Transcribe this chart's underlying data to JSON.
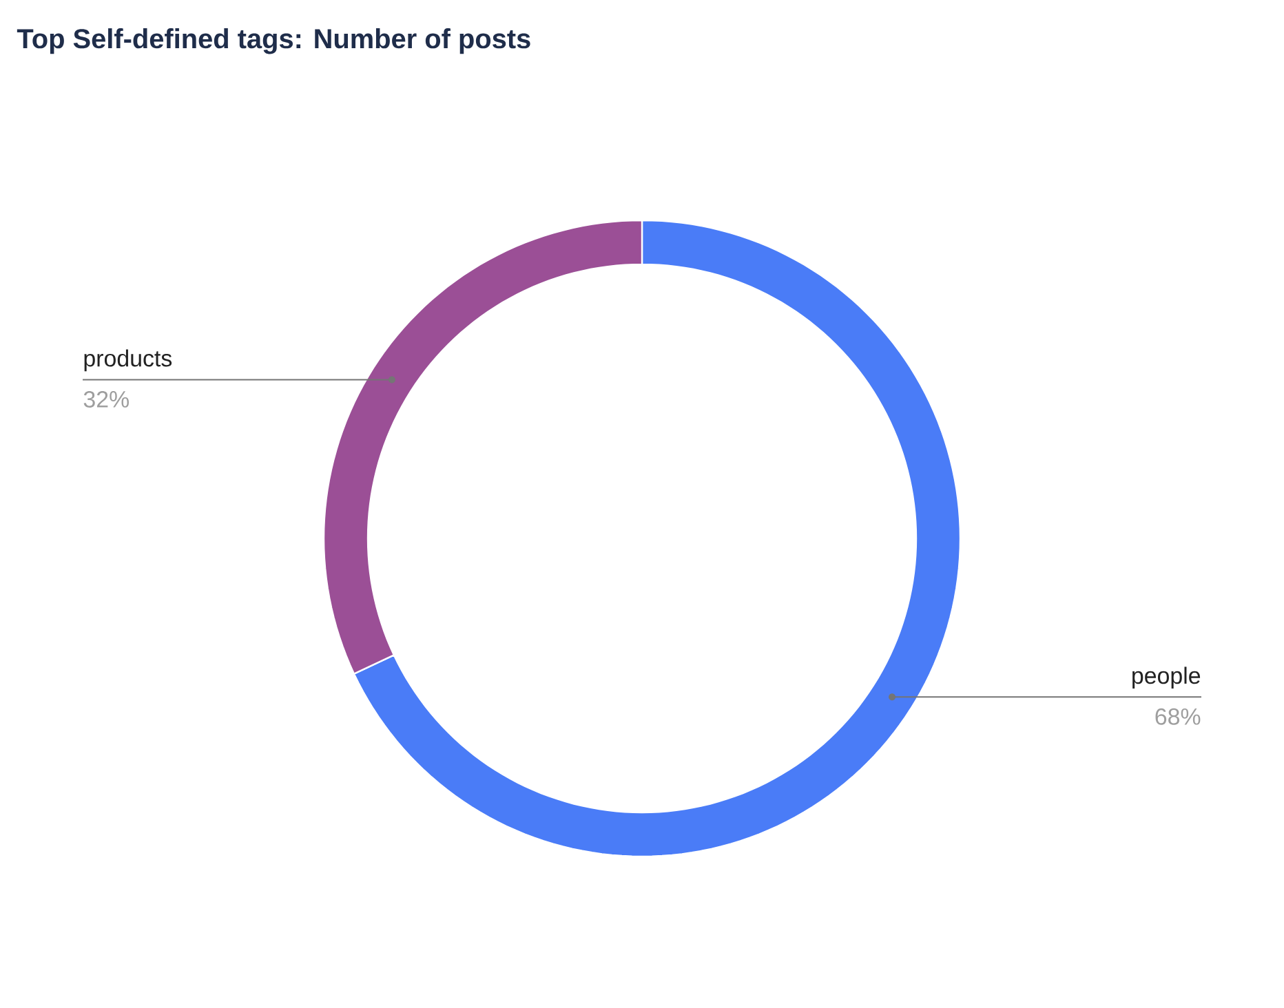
{
  "chart_data": {
    "type": "donut",
    "title": "Top Self-defined tags: Number of posts",
    "categories": [
      "people",
      "products"
    ],
    "values": [
      68,
      32
    ],
    "colors": [
      "#4a7cf7",
      "#9b4f96"
    ],
    "value_labels": [
      "68%",
      "32%"
    ]
  }
}
